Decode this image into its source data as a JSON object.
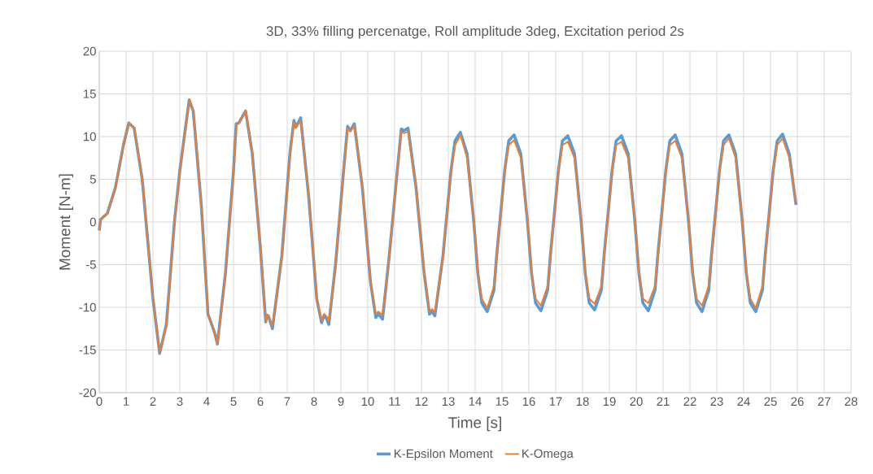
{
  "chart_data": {
    "type": "line",
    "title": "3D, 33% filling percenatge, Roll amplitude 3deg, Excitation period 2s",
    "xlabel": "Time [s]",
    "ylabel": "Moment [N-m]",
    "x": [
      0,
      0.05,
      0.3,
      0.6,
      0.9,
      1.1,
      1.3,
      1.6,
      1.8,
      2.0,
      2.25,
      2.5,
      2.8,
      3.0,
      3.35,
      3.5,
      3.8,
      4.05,
      4.3,
      4.4,
      4.7,
      5.0,
      5.1,
      5.2,
      5.45,
      5.7,
      6.0,
      6.2,
      6.25,
      6.3,
      6.45,
      6.8,
      7.1,
      7.25,
      7.32,
      7.5,
      7.8,
      8.1,
      8.28,
      8.38,
      8.45,
      8.55,
      8.8,
      9.1,
      9.25,
      9.35,
      9.5,
      9.8,
      10.1,
      10.3,
      10.4,
      10.55,
      10.8,
      11.1,
      11.25,
      11.35,
      11.5,
      11.8,
      12.1,
      12.3,
      12.4,
      12.5,
      12.8,
      13.1,
      13.25,
      13.45,
      13.7,
      13.95,
      14.1,
      14.25,
      14.45,
      14.7,
      14.8,
      15.1,
      15.25,
      15.45,
      15.7,
      15.95,
      16.1,
      16.25,
      16.45,
      16.7,
      16.8,
      17.1,
      17.25,
      17.45,
      17.7,
      17.95,
      18.1,
      18.25,
      18.45,
      18.7,
      18.8,
      19.1,
      19.25,
      19.45,
      19.7,
      19.95,
      20.1,
      20.25,
      20.45,
      20.7,
      20.8,
      21.1,
      21.25,
      21.45,
      21.7,
      21.95,
      22.1,
      22.25,
      22.45,
      22.7,
      22.8,
      23.1,
      23.25,
      23.45,
      23.7,
      23.95,
      24.1,
      24.25,
      24.45,
      24.7,
      24.8,
      25.1,
      25.25,
      25.45,
      25.7,
      25.95
    ],
    "series": [
      {
        "name": "K-Epsilon Moment",
        "color": "#5b9bd5",
        "values": [
          -1,
          0.3,
          1,
          4,
          9,
          11.6,
          11,
          5,
          -2,
          -9,
          -15.4,
          -12,
          0,
          6,
          14.3,
          13,
          2,
          -10.8,
          -13,
          -14.3,
          -6,
          6,
          11.5,
          11.6,
          13,
          8,
          -3,
          -11.7,
          -10.9,
          -11,
          -12.5,
          -4,
          8,
          11.9,
          11.1,
          12.2,
          3,
          -9,
          -11.8,
          -10.9,
          -11.2,
          -12,
          -5,
          6,
          11.2,
          10.7,
          11.5,
          4,
          -7,
          -11.2,
          -10.8,
          -11.4,
          -4,
          6,
          10.9,
          10.7,
          11,
          4,
          -6,
          -10.8,
          -10.5,
          -11,
          -4,
          6,
          9.5,
          10.5,
          8,
          0,
          -6,
          -9.5,
          -10.5,
          -8,
          -4,
          6,
          9.5,
          10.2,
          8,
          0,
          -6,
          -9.5,
          -10.4,
          -8,
          -4,
          6,
          9.5,
          10.1,
          8,
          0,
          -6,
          -9.5,
          -10.3,
          -8,
          -4,
          6,
          9.5,
          10.1,
          8,
          0,
          -6,
          -9.5,
          -10.4,
          -8,
          -4,
          6,
          9.5,
          10.2,
          8,
          0,
          -6,
          -9.5,
          -10.5,
          -8,
          -4,
          6,
          9.5,
          10.2,
          8,
          0,
          -6,
          -9.5,
          -10.5,
          -8,
          -4,
          6,
          9.5,
          10.3,
          8,
          2
        ]
      },
      {
        "name": "K-Omega",
        "color": "#ed7d31",
        "values": [
          -1,
          0.3,
          1,
          4,
          9,
          11.6,
          11,
          5,
          -2,
          -9,
          -15.4,
          -12,
          0,
          6,
          14.3,
          13,
          2,
          -10.8,
          -13,
          -14.3,
          -6,
          6,
          11.5,
          11.6,
          13,
          8,
          -3,
          -11.7,
          -10.9,
          -11,
          -12.2,
          -4,
          8,
          11.7,
          11,
          11.9,
          3,
          -9,
          -11.5,
          -10.8,
          -11,
          -11.6,
          -5,
          6,
          11,
          10.6,
          11.3,
          4,
          -7,
          -10.8,
          -10.5,
          -10.9,
          -4,
          6,
          10.6,
          10.4,
          10.6,
          4,
          -6,
          -10.5,
          -10.2,
          -10.6,
          -4,
          6,
          9,
          10.2,
          7.5,
          0,
          -6,
          -9,
          -10.1,
          -7.5,
          -4,
          6,
          9,
          9.6,
          7.5,
          0,
          -6,
          -9,
          -9.8,
          -7.5,
          -4,
          6,
          9,
          9.4,
          7.5,
          0,
          -6,
          -9,
          -9.6,
          -7.5,
          -4,
          6,
          9,
          9.4,
          7.5,
          0,
          -6,
          -9,
          -9.5,
          -7.5,
          -4,
          6,
          9,
          9.5,
          7.5,
          0,
          -6,
          -9,
          -9.8,
          -7.5,
          -4,
          6,
          9,
          9.8,
          7.5,
          0,
          -6,
          -9,
          -10.1,
          -7.5,
          -4,
          6,
          9,
          9.8,
          7.5,
          2.3
        ]
      }
    ],
    "xlim": [
      0,
      28
    ],
    "xticks": [
      0,
      1,
      2,
      3,
      4,
      5,
      6,
      7,
      8,
      9,
      10,
      11,
      12,
      13,
      14,
      15,
      16,
      17,
      18,
      19,
      20,
      21,
      22,
      23,
      24,
      25,
      26,
      27,
      28
    ],
    "ylim": [
      -20,
      20
    ],
    "yticks": [
      -20,
      -15,
      -10,
      -5,
      0,
      5,
      10,
      15,
      20
    ],
    "grid": true,
    "legend": "bottom"
  }
}
